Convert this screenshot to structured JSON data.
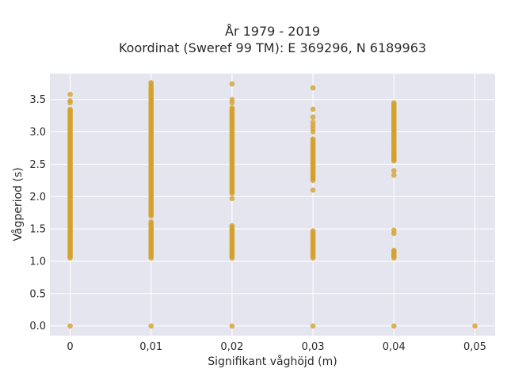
{
  "chart_data": {
    "type": "scatter",
    "title": "År 1979 - 2019",
    "subtitle": "Koordinat (Sweref 99 TM): E 369296, N 6189963",
    "xlabel": "Signifikant våghöjd (m)",
    "ylabel": "Vågperiod (s)",
    "xlim": [
      -0.0025,
      0.0525
    ],
    "ylim": [
      -0.15,
      3.9
    ],
    "x_ticks": [
      0,
      0.01,
      0.02,
      0.03,
      0.04,
      0.05
    ],
    "x_tick_labels": [
      "0",
      "0,01",
      "0,02",
      "0,03",
      "0,04",
      "0,05"
    ],
    "y_ticks": [
      0,
      0.5,
      1,
      1.5,
      2,
      2.5,
      3,
      3.5
    ],
    "y_tick_labels": [
      "0.0",
      "0.5",
      "1.0",
      "1.5",
      "2.0",
      "2.5",
      "3.0",
      "3.5"
    ],
    "grid": true,
    "background": "#e5e5ef",
    "marker_color": "#d4a12a",
    "series": [
      {
        "x": 0,
        "ranges": [
          [
            1.05,
            3.35
          ]
        ],
        "points": [
          0,
          3.45,
          3.48,
          3.58
        ]
      },
      {
        "x": 0.01,
        "ranges": [
          [
            1.05,
            1.62
          ],
          [
            1.7,
            3.7
          ]
        ],
        "points": [
          0,
          3.74,
          3.76
        ]
      },
      {
        "x": 0.02,
        "ranges": [
          [
            1.05,
            1.55
          ],
          [
            2.05,
            3.38
          ]
        ],
        "points": [
          0,
          1.97,
          3.45,
          3.5,
          3.74
        ]
      },
      {
        "x": 0.03,
        "ranges": [
          [
            1.05,
            1.47
          ],
          [
            2.25,
            2.9
          ]
        ],
        "points": [
          0,
          2.1,
          3.0,
          3.05,
          3.1,
          3.15,
          3.23,
          3.35,
          3.68
        ]
      },
      {
        "x": 0.04,
        "ranges": [
          [
            1.05,
            1.18
          ],
          [
            2.55,
            3.45
          ]
        ],
        "points": [
          0,
          1.43,
          1.48,
          2.33,
          2.4,
          2.6,
          2.65
        ]
      },
      {
        "x": 0.05,
        "ranges": [],
        "points": [
          0
        ]
      }
    ]
  }
}
